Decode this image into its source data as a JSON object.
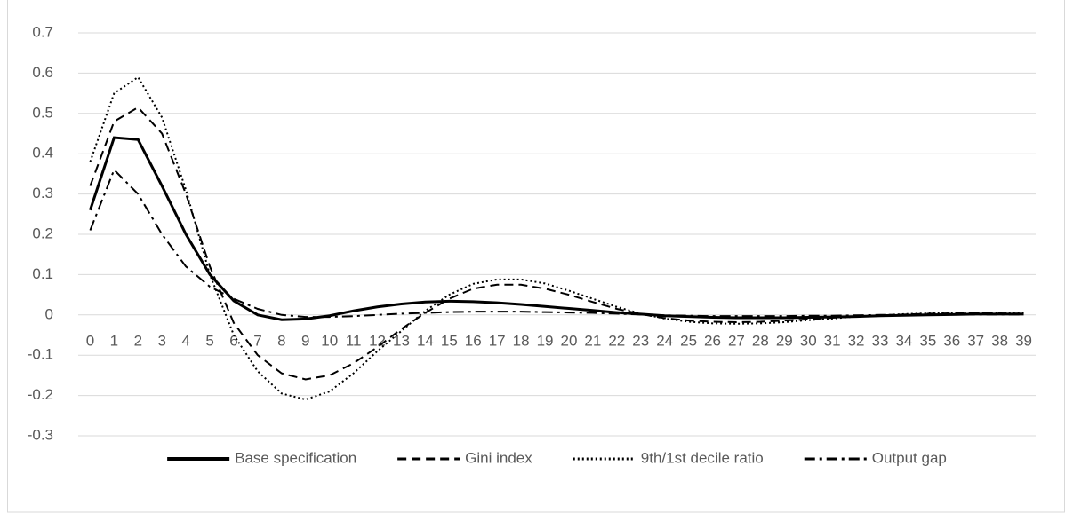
{
  "chart_data": {
    "type": "line",
    "categories": [
      0,
      1,
      2,
      3,
      4,
      5,
      6,
      7,
      8,
      9,
      10,
      11,
      12,
      13,
      14,
      15,
      16,
      17,
      18,
      19,
      20,
      21,
      22,
      23,
      24,
      25,
      26,
      27,
      28,
      29,
      30,
      31,
      32,
      33,
      34,
      35,
      36,
      37,
      38,
      39
    ],
    "series": [
      {
        "name": "Base specification",
        "color": "#000000",
        "dash": "solid",
        "width": 3,
        "values": [
          0.26,
          0.44,
          0.435,
          0.32,
          0.2,
          0.1,
          0.035,
          0.0,
          -0.012,
          -0.01,
          -0.002,
          0.01,
          0.02,
          0.027,
          0.032,
          0.034,
          0.033,
          0.03,
          0.026,
          0.021,
          0.016,
          0.011,
          0.006,
          0.002,
          -0.002,
          -0.004,
          -0.006,
          -0.007,
          -0.007,
          -0.007,
          -0.006,
          -0.005,
          -0.004,
          -0.002,
          -0.001,
          0.0,
          0.001,
          0.002,
          0.002,
          0.002
        ]
      },
      {
        "name": "Gini index",
        "color": "#000000",
        "dash": "dashed",
        "width": 2,
        "values": [
          0.32,
          0.48,
          0.515,
          0.45,
          0.3,
          0.12,
          -0.02,
          -0.1,
          -0.145,
          -0.16,
          -0.15,
          -0.12,
          -0.08,
          -0.035,
          0.005,
          0.04,
          0.065,
          0.075,
          0.075,
          0.065,
          0.05,
          0.032,
          0.015,
          0.002,
          -0.008,
          -0.014,
          -0.017,
          -0.018,
          -0.017,
          -0.014,
          -0.011,
          -0.007,
          -0.004,
          -0.001,
          0.001,
          0.003,
          0.004,
          0.004,
          0.004,
          0.003
        ]
      },
      {
        "name": "9th/1st decile ratio",
        "color": "#000000",
        "dash": "dotted",
        "width": 2,
        "values": [
          0.38,
          0.55,
          0.59,
          0.49,
          0.31,
          0.1,
          -0.05,
          -0.14,
          -0.195,
          -0.21,
          -0.19,
          -0.145,
          -0.09,
          -0.04,
          0.01,
          0.05,
          0.077,
          0.088,
          0.088,
          0.078,
          0.06,
          0.04,
          0.02,
          0.003,
          -0.009,
          -0.017,
          -0.021,
          -0.022,
          -0.021,
          -0.018,
          -0.013,
          -0.009,
          -0.004,
          -0.001,
          0.002,
          0.004,
          0.005,
          0.005,
          0.005,
          0.004
        ]
      },
      {
        "name": "Output gap",
        "color": "#000000",
        "dash": "dashdot",
        "width": 2,
        "values": [
          0.21,
          0.36,
          0.3,
          0.2,
          0.12,
          0.07,
          0.04,
          0.015,
          0.0,
          -0.005,
          -0.005,
          -0.003,
          0.0,
          0.003,
          0.005,
          0.007,
          0.008,
          0.008,
          0.008,
          0.007,
          0.006,
          0.005,
          0.003,
          0.001,
          -0.001,
          -0.002,
          -0.003,
          -0.003,
          -0.003,
          -0.003,
          -0.002,
          -0.002,
          -0.001,
          0,
          0,
          0.001,
          0.001,
          0.001,
          0.001,
          0.001
        ]
      }
    ],
    "ylim": [
      -0.3,
      0.7
    ],
    "yticks": [
      0.7,
      0.6,
      0.5,
      0.4,
      0.3,
      0.2,
      0.1,
      0,
      -0.1,
      -0.2,
      -0.3
    ],
    "grid": true,
    "legend": "bottom"
  }
}
